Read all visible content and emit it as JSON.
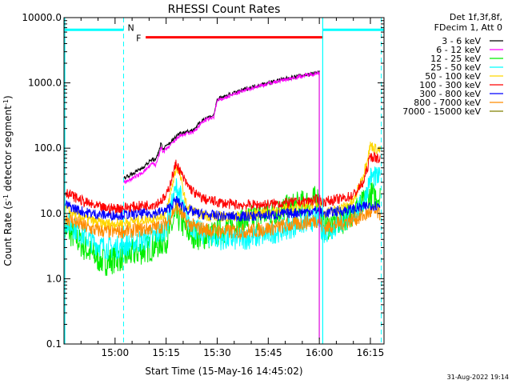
{
  "chart_data": {
    "type": "line",
    "title": "RHESSI Count Rates",
    "xlabel": "Start Time (15-May-16 14:45:02)",
    "ylabel_main": "Count Rate (s",
    "ylabel_sup1": "-1",
    "ylabel_mid": " detector segment",
    "ylabel_sup2": "-1",
    "ylabel_end": ")",
    "yscale": "log",
    "ylim": [
      0.1,
      10000.0
    ],
    "xlim_minutes": [
      0,
      94
    ],
    "x_ticks": [
      {
        "t": 15,
        "label": "15:00"
      },
      {
        "t": 30,
        "label": "15:15"
      },
      {
        "t": 45,
        "label": "15:30"
      },
      {
        "t": 60,
        "label": "15:45"
      },
      {
        "t": 75,
        "label": "16:00"
      },
      {
        "t": 90,
        "label": "16:15"
      }
    ],
    "y_ticks": [
      {
        "v": 0.1,
        "label": "0.1"
      },
      {
        "v": 1.0,
        "label": "1.0"
      },
      {
        "v": 10.0,
        "label": "10.0"
      },
      {
        "v": 100.0,
        "label": "100.0"
      },
      {
        "v": 1000.0,
        "label": "1000.0"
      },
      {
        "v": 10000.0,
        "label": "10000.0"
      }
    ],
    "legend_header": [
      "Det 1f,3f,8f,",
      "FDecim 1, Att 0"
    ],
    "series": [
      {
        "name": "3 - 6 keV",
        "color": "#000000",
        "values": [
          [
            17.5,
            35
          ],
          [
            20,
            40
          ],
          [
            23,
            50
          ],
          [
            26,
            68
          ],
          [
            27,
            65
          ],
          [
            28.5,
            120
          ],
          [
            29,
            95
          ],
          [
            33,
            150
          ],
          [
            33.5,
            165
          ],
          [
            35,
            175
          ],
          [
            38,
            190
          ],
          [
            41,
            280
          ],
          [
            44,
            320
          ],
          [
            45,
            560
          ],
          [
            50,
            700
          ],
          [
            55,
            860
          ],
          [
            60,
            1000
          ],
          [
            65,
            1160
          ],
          [
            70,
            1300
          ],
          [
            74,
            1420
          ],
          [
            75,
            1450
          ],
          [
            75.1,
            null
          ]
        ]
      },
      {
        "name": "6 - 12 keV",
        "color": "#ff00ff",
        "values": [
          [
            17.5,
            30
          ],
          [
            20,
            34
          ],
          [
            23,
            42
          ],
          [
            26,
            58
          ],
          [
            27,
            55
          ],
          [
            28.5,
            105
          ],
          [
            29,
            85
          ],
          [
            33,
            135
          ],
          [
            33.5,
            150
          ],
          [
            35,
            160
          ],
          [
            38,
            175
          ],
          [
            41,
            260
          ],
          [
            44,
            300
          ],
          [
            45,
            530
          ],
          [
            50,
            670
          ],
          [
            55,
            830
          ],
          [
            60,
            970
          ],
          [
            65,
            1130
          ],
          [
            70,
            1270
          ],
          [
            74,
            1400
          ],
          [
            75,
            1430
          ],
          [
            75.1,
            null
          ]
        ]
      },
      {
        "name": "12 - 25 keV",
        "color": "#00ee00",
        "values": [
          [
            0,
            6
          ],
          [
            3,
            4.5
          ],
          [
            6,
            3
          ],
          [
            9,
            2.2
          ],
          [
            12,
            1.8
          ],
          [
            15,
            2
          ],
          [
            18,
            2.2
          ],
          [
            21,
            2.5
          ],
          [
            24,
            2.8
          ],
          [
            27,
            3.2
          ],
          [
            30,
            4
          ],
          [
            33,
            9
          ],
          [
            34,
            8
          ],
          [
            36,
            5.5
          ],
          [
            39,
            4.5
          ],
          [
            42,
            4.5
          ],
          [
            45,
            5
          ],
          [
            48,
            6
          ],
          [
            51,
            7
          ],
          [
            54,
            8
          ],
          [
            57,
            9
          ],
          [
            60,
            10
          ],
          [
            63,
            11
          ],
          [
            66,
            12
          ],
          [
            69,
            13.5
          ],
          [
            72,
            15
          ],
          [
            75,
            17
          ],
          [
            76,
            6
          ],
          [
            79,
            7
          ],
          [
            82,
            8
          ],
          [
            85,
            11
          ],
          [
            88,
            14
          ],
          [
            90,
            19
          ],
          [
            93,
            18
          ]
        ]
      },
      {
        "name": "25 - 50 keV",
        "color": "#00ffff",
        "values": [
          [
            0,
            8
          ],
          [
            3,
            6
          ],
          [
            6,
            4.5
          ],
          [
            9,
            3.5
          ],
          [
            12,
            3
          ],
          [
            15,
            3
          ],
          [
            18,
            3.2
          ],
          [
            21,
            3.6
          ],
          [
            24,
            4
          ],
          [
            27,
            4.6
          ],
          [
            30,
            6
          ],
          [
            33,
            25
          ],
          [
            34,
            20
          ],
          [
            36,
            8
          ],
          [
            39,
            5.5
          ],
          [
            42,
            4.6
          ],
          [
            45,
            4.2
          ],
          [
            48,
            4
          ],
          [
            51,
            4
          ],
          [
            54,
            4.2
          ],
          [
            57,
            4.4
          ],
          [
            60,
            4.8
          ],
          [
            63,
            5.4
          ],
          [
            66,
            6
          ],
          [
            69,
            6.8
          ],
          [
            72,
            7.6
          ],
          [
            75,
            8.5
          ],
          [
            76,
            5
          ],
          [
            79,
            6
          ],
          [
            82,
            7.5
          ],
          [
            85,
            10
          ],
          [
            88,
            14
          ],
          [
            90,
            36
          ],
          [
            93,
            34
          ]
        ]
      },
      {
        "name": "50 - 100 keV",
        "color": "#ffd700",
        "values": [
          [
            0,
            12
          ],
          [
            3,
            10
          ],
          [
            6,
            8.5
          ],
          [
            9,
            7.5
          ],
          [
            12,
            7
          ],
          [
            15,
            7
          ],
          [
            18,
            7.3
          ],
          [
            21,
            7.7
          ],
          [
            24,
            8.1
          ],
          [
            27,
            8.6
          ],
          [
            30,
            10
          ],
          [
            33,
            52
          ],
          [
            34,
            40
          ],
          [
            36,
            13
          ],
          [
            39,
            10
          ],
          [
            42,
            9.2
          ],
          [
            45,
            9
          ],
          [
            48,
            9
          ],
          [
            51,
            9.2
          ],
          [
            54,
            9.6
          ],
          [
            57,
            10
          ],
          [
            60,
            10.5
          ],
          [
            63,
            11.2
          ],
          [
            66,
            12
          ],
          [
            69,
            12.8
          ],
          [
            72,
            13.6
          ],
          [
            75,
            14.5
          ],
          [
            76,
            10
          ],
          [
            79,
            11
          ],
          [
            82,
            12.5
          ],
          [
            85,
            15
          ],
          [
            88,
            40
          ],
          [
            90,
            110
          ],
          [
            93,
            90
          ]
        ]
      },
      {
        "name": "100 - 300 keV",
        "color": "#ff0000",
        "values": [
          [
            0,
            22
          ],
          [
            3,
            18
          ],
          [
            6,
            15
          ],
          [
            9,
            13
          ],
          [
            12,
            12
          ],
          [
            15,
            12
          ],
          [
            18,
            12.3
          ],
          [
            21,
            12.8
          ],
          [
            24,
            13.4
          ],
          [
            27,
            14
          ],
          [
            30,
            18
          ],
          [
            33,
            60
          ],
          [
            34,
            45
          ],
          [
            36,
            28
          ],
          [
            39,
            19
          ],
          [
            42,
            16
          ],
          [
            45,
            15
          ],
          [
            48,
            14
          ],
          [
            51,
            13.5
          ],
          [
            54,
            13.5
          ],
          [
            57,
            13.5
          ],
          [
            60,
            13.8
          ],
          [
            63,
            14.2
          ],
          [
            66,
            14.6
          ],
          [
            69,
            15
          ],
          [
            72,
            15.5
          ],
          [
            75,
            16.5
          ],
          [
            76,
            15
          ],
          [
            79,
            16
          ],
          [
            82,
            17
          ],
          [
            85,
            19
          ],
          [
            88,
            30
          ],
          [
            90,
            75
          ],
          [
            93,
            68
          ]
        ]
      },
      {
        "name": "300 - 800 keV",
        "color": "#0000ff",
        "values": [
          [
            0,
            14
          ],
          [
            3,
            12
          ],
          [
            6,
            10.5
          ],
          [
            9,
            9.8
          ],
          [
            12,
            9.5
          ],
          [
            15,
            9.5
          ],
          [
            18,
            9.6
          ],
          [
            21,
            9.8
          ],
          [
            24,
            10
          ],
          [
            27,
            10.2
          ],
          [
            30,
            11
          ],
          [
            33,
            16
          ],
          [
            34,
            14
          ],
          [
            36,
            11.5
          ],
          [
            39,
            10
          ],
          [
            42,
            9.5
          ],
          [
            45,
            9.2
          ],
          [
            48,
            9
          ],
          [
            51,
            9
          ],
          [
            54,
            9
          ],
          [
            57,
            9.2
          ],
          [
            60,
            9.4
          ],
          [
            63,
            9.7
          ],
          [
            66,
            10
          ],
          [
            69,
            10.4
          ],
          [
            72,
            10.8
          ],
          [
            75,
            11.2
          ],
          [
            76,
            10
          ],
          [
            79,
            10.5
          ],
          [
            82,
            11
          ],
          [
            85,
            11.8
          ],
          [
            88,
            12.5
          ],
          [
            90,
            13.5
          ],
          [
            93,
            13
          ]
        ]
      },
      {
        "name": "800 - 7000 keV",
        "color": "#ff8c00",
        "values": [
          [
            0,
            9
          ],
          [
            3,
            7.5
          ],
          [
            6,
            6.3
          ],
          [
            9,
            5.6
          ],
          [
            12,
            5.4
          ],
          [
            15,
            5.3
          ],
          [
            18,
            5.4
          ],
          [
            21,
            5.6
          ],
          [
            24,
            5.8
          ],
          [
            27,
            6.1
          ],
          [
            30,
            6.8
          ],
          [
            33,
            13
          ],
          [
            34,
            11
          ],
          [
            36,
            7.2
          ],
          [
            39,
            6
          ],
          [
            42,
            5.6
          ],
          [
            45,
            5.4
          ],
          [
            48,
            5.3
          ],
          [
            51,
            5.3
          ],
          [
            54,
            5.4
          ],
          [
            57,
            5.6
          ],
          [
            60,
            5.9
          ],
          [
            63,
            6.2
          ],
          [
            66,
            6.6
          ],
          [
            69,
            7
          ],
          [
            72,
            7.5
          ],
          [
            75,
            8
          ],
          [
            76,
            6
          ],
          [
            79,
            6.6
          ],
          [
            82,
            7.3
          ],
          [
            85,
            8.2
          ],
          [
            88,
            9.2
          ],
          [
            90,
            10.5
          ],
          [
            93,
            10
          ]
        ]
      },
      {
        "name": "7000 - 15000 keV",
        "color": "#808000",
        "values": []
      }
    ],
    "annotations": {
      "night_color": "#00ffff",
      "flare_color": "#ff0000",
      "night_label": "N",
      "flare_label": "F",
      "night_bar_level": 6500.0,
      "flare_bar_level": 5000.0,
      "night_intervals": [
        [
          0,
          17.5
        ],
        [
          76,
          94
        ]
      ],
      "flare_interval": [
        24,
        76
      ],
      "boundaries_dashed": [
        17.5,
        93.2
      ],
      "boundaries_solid": [
        0,
        76
      ]
    },
    "timestamp": "31-Aug-2022 19:14",
    "grid": false,
    "legend_position": "outside-right"
  }
}
